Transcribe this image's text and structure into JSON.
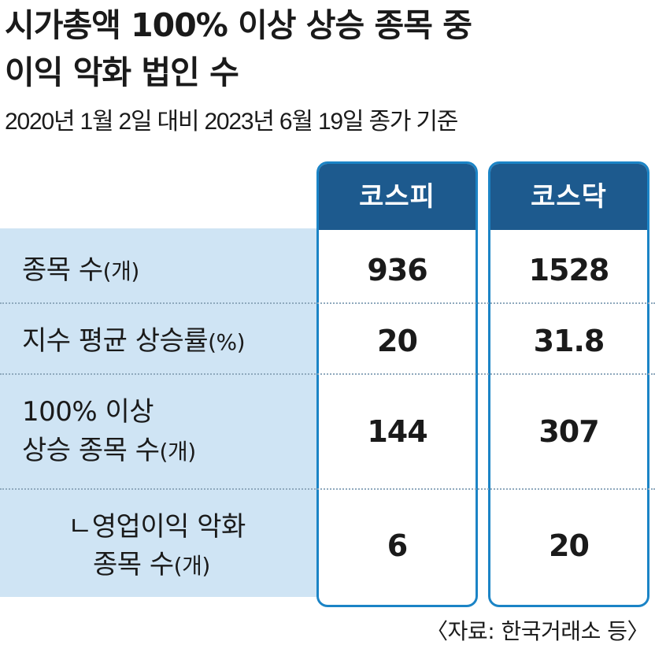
{
  "title_line1": "시가총액 100% 이상 상승 종목 중",
  "title_line2": "이익 악화 법인 수",
  "subtitle": "2020년 1월 2일 대비 2023년 6월 19일 종가 기준",
  "source": "〈자료: 한국거래소 등〉",
  "colors": {
    "header_bg": "#1d5a8e",
    "border": "#1b84c6",
    "label_band": "#cfe4f4"
  },
  "chart_data": {
    "type": "table",
    "columns": [
      "코스피",
      "코스닥"
    ],
    "rows": [
      {
        "label": "종목 수",
        "unit": "(개)",
        "values": [
          "936",
          "1528"
        ]
      },
      {
        "label": "지수 평균 상승률",
        "unit": "(%)",
        "values": [
          "20",
          "31.8"
        ]
      },
      {
        "label_line1": "100% 이상",
        "label_line2": "상승 종목 수",
        "unit": "(개)",
        "values": [
          "144",
          "307"
        ]
      },
      {
        "label_line1": "ㄴ영업이익 악화",
        "label_line2": "종목 수",
        "unit": "(개)",
        "values": [
          "6",
          "20"
        ]
      }
    ]
  }
}
